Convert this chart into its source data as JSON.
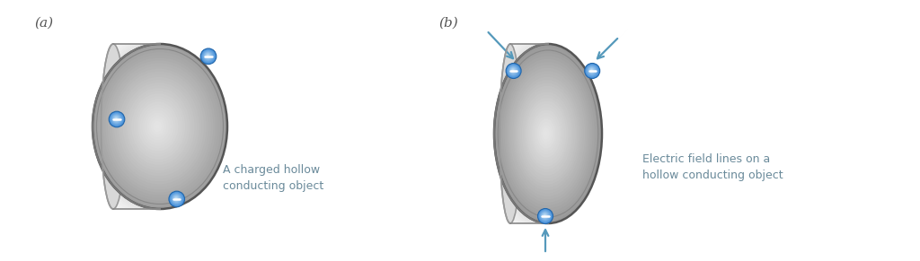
{
  "fig_width": 10.24,
  "fig_height": 2.91,
  "bg_color": "#ffffff",
  "label_a": "(a)",
  "label_b": "(b)",
  "text_a": "A charged hollow\nconducting object",
  "text_b": "Electric field lines on a\nhollow conducting object",
  "text_color": "#6a8a9a",
  "label_color": "#555555",
  "arrow_color": "#5599bb",
  "rim_color": "#e8e8e8",
  "rim_edge_color": "#999999",
  "face_edge_color": "#777777",
  "face_inner_edge": "#999999"
}
